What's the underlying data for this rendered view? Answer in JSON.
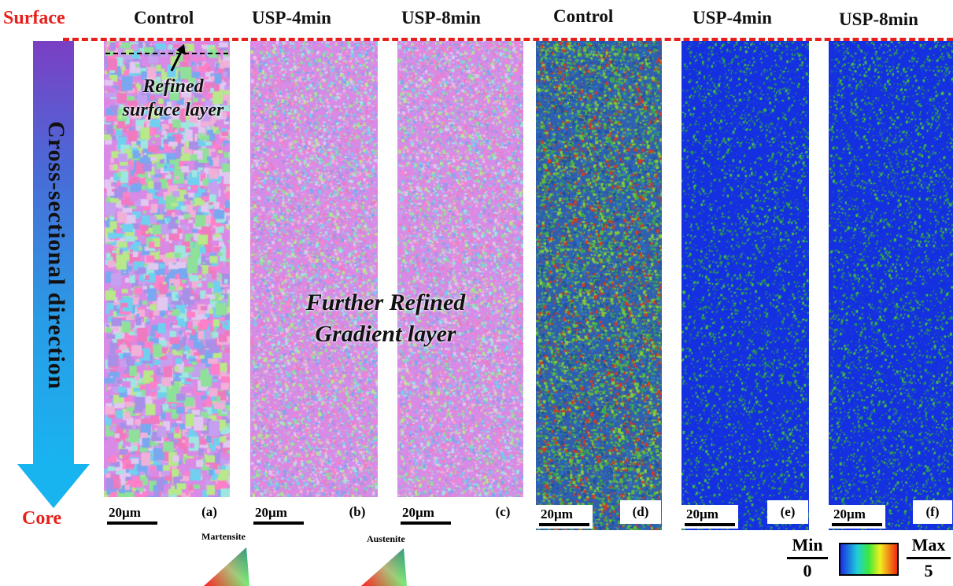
{
  "side_labels": {
    "surface": "Surface",
    "core": "Core"
  },
  "direction_label": "Cross-sectional  direction",
  "columns": [
    {
      "title": "Control",
      "letter": "(a)",
      "scale": "20µm",
      "kind": "ipf"
    },
    {
      "title": "USP-4min",
      "letter": "(b)",
      "scale": "20µm",
      "kind": "ipf"
    },
    {
      "title": "USP-8min",
      "letter": "(c)",
      "scale": "20µm",
      "kind": "ipf"
    },
    {
      "title": "Control",
      "letter": "(d)",
      "scale": "20µm",
      "kind": "kam"
    },
    {
      "title": "USP-4min",
      "letter": "(e)",
      "scale": "20µm",
      "kind": "kam"
    },
    {
      "title": "USP-8min",
      "letter": "(f)",
      "scale": "20µm",
      "kind": "kam"
    }
  ],
  "annotations": {
    "refined_surface": "Refined\nsurface layer",
    "gradient_line1": "Further Refined",
    "gradient_line2": "Gradient layer"
  },
  "legends": {
    "martensite": "Martensite",
    "austenite": "Austenite",
    "colorbar": {
      "min_label": "Min",
      "min_value": "0",
      "max_label": "Max",
      "max_value": "5"
    }
  },
  "colors": {
    "accent_red": "#e8201c",
    "arrow_top": "#7b3fc4",
    "arrow_bottom": "#18b4f0"
  }
}
